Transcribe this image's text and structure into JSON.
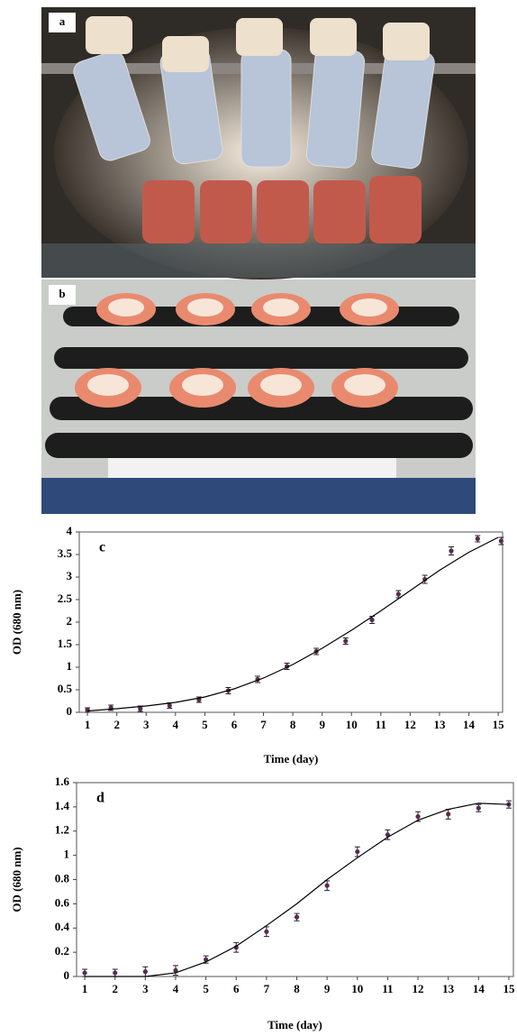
{
  "photos": [
    {
      "label": "a"
    },
    {
      "label": "b"
    }
  ],
  "chart_data": [
    {
      "type": "scatter",
      "annotation": "c",
      "x_label": "Time (day)",
      "y_label": "OD (680 nm)",
      "xlim": [
        0.72,
        15.15
      ],
      "xticks": [
        1,
        2,
        3,
        4,
        5,
        6,
        7,
        8,
        9,
        10,
        11,
        12,
        13,
        14,
        15
      ],
      "ylim": [
        0,
        4
      ],
      "yticks": [
        0,
        0.5,
        1,
        1.5,
        2,
        2.5,
        3,
        3.5,
        4
      ],
      "series": [
        {
          "style": "points",
          "color": "#5a2a50",
          "x": [
            1,
            1.8,
            2.8,
            3.8,
            4.8,
            5.8,
            6.8,
            7.8,
            8.8,
            9.8,
            10.7,
            11.6,
            12.5,
            13.4,
            14.3,
            15.1
          ],
          "values": [
            0.05,
            0.1,
            0.08,
            0.15,
            0.28,
            0.48,
            0.73,
            1.02,
            1.35,
            1.58,
            2.05,
            2.62,
            2.95,
            3.58,
            3.85,
            3.8
          ],
          "errors": [
            0.05,
            0.06,
            0.06,
            0.06,
            0.06,
            0.07,
            0.07,
            0.07,
            0.07,
            0.07,
            0.08,
            0.08,
            0.09,
            0.09,
            0.07,
            0.08
          ]
        },
        {
          "style": "line",
          "color": "#000000",
          "x": [
            1,
            2,
            3,
            4,
            5,
            6,
            7,
            8,
            9,
            10,
            11,
            12,
            13,
            14,
            15
          ],
          "values": [
            0.03,
            0.08,
            0.14,
            0.22,
            0.34,
            0.52,
            0.76,
            1.06,
            1.42,
            1.82,
            2.25,
            2.7,
            3.15,
            3.55,
            3.88
          ]
        }
      ]
    },
    {
      "type": "scatter",
      "annotation": "d",
      "x_label": "Time (day)",
      "y_label": "OD (680 nm)",
      "xlim": [
        0.73,
        15.15
      ],
      "xticks": [
        1,
        2,
        3,
        4,
        5,
        6,
        7,
        8,
        9,
        10,
        11,
        12,
        13,
        14,
        15
      ],
      "ylim": [
        0,
        1.6
      ],
      "yticks": [
        0,
        0.2,
        0.4,
        0.6,
        0.8,
        1,
        1.2,
        1.4,
        1.6
      ],
      "series": [
        {
          "style": "points",
          "color": "#5a2a50",
          "x": [
            1,
            2,
            3,
            4,
            5,
            6,
            7,
            8,
            9,
            10,
            11,
            12,
            13,
            14,
            15
          ],
          "values": [
            0.03,
            0.03,
            0.04,
            0.05,
            0.14,
            0.24,
            0.37,
            0.49,
            0.75,
            1.03,
            1.17,
            1.32,
            1.34,
            1.39,
            1.42
          ],
          "errors": [
            0.03,
            0.03,
            0.04,
            0.04,
            0.03,
            0.04,
            0.04,
            0.03,
            0.04,
            0.04,
            0.04,
            0.04,
            0.04,
            0.03,
            0.03
          ]
        },
        {
          "style": "line",
          "color": "#000000",
          "x": [
            1,
            2,
            3,
            4,
            5,
            6,
            7,
            8,
            9,
            10,
            11,
            12,
            13,
            14,
            15
          ],
          "values": [
            0.0,
            0.0,
            0.0,
            0.03,
            0.12,
            0.25,
            0.42,
            0.6,
            0.8,
            0.98,
            1.15,
            1.29,
            1.38,
            1.43,
            1.42
          ]
        }
      ]
    }
  ]
}
